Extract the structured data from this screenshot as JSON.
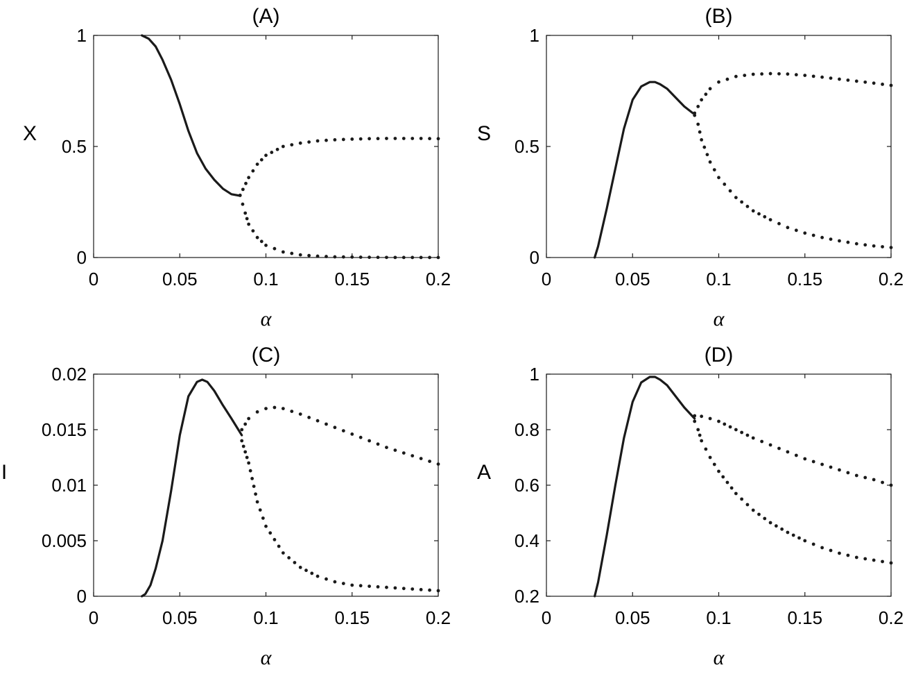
{
  "chart_data": [
    {
      "type": "line",
      "title": "(A)",
      "xlabel": "α",
      "ylabel": "X",
      "xlim": [
        0,
        0.2
      ],
      "ylim": [
        0,
        1
      ],
      "xticks": [
        "0",
        "0.05",
        "0.1",
        "0.15",
        "0.2"
      ],
      "yticks": [
        "0",
        "0.5",
        "1"
      ],
      "xtick_values": [
        0,
        0.05,
        0.1,
        0.15,
        0.2
      ],
      "ytick_values": [
        0,
        0.5,
        1
      ],
      "series": [
        {
          "style": "solid",
          "x": [
            0.028,
            0.032,
            0.036,
            0.04,
            0.045,
            0.05,
            0.055,
            0.06,
            0.065,
            0.07,
            0.075,
            0.08,
            0.085
          ],
          "y": [
            1.0,
            0.985,
            0.95,
            0.89,
            0.8,
            0.69,
            0.57,
            0.47,
            0.4,
            0.35,
            0.31,
            0.285,
            0.278
          ]
        },
        {
          "style": "dotted",
          "x": [
            0.085,
            0.09,
            0.095,
            0.1,
            0.11,
            0.12,
            0.13,
            0.14,
            0.15,
            0.16,
            0.17,
            0.18,
            0.19,
            0.2
          ],
          "y": [
            0.28,
            0.36,
            0.42,
            0.46,
            0.5,
            0.515,
            0.525,
            0.53,
            0.533,
            0.535,
            0.536,
            0.536,
            0.536,
            0.535
          ]
        },
        {
          "style": "dotted",
          "x": [
            0.085,
            0.088,
            0.09,
            0.095,
            0.1,
            0.11,
            0.12,
            0.13,
            0.14,
            0.15,
            0.16,
            0.17,
            0.18,
            0.19,
            0.2
          ],
          "y": [
            0.28,
            0.2,
            0.15,
            0.09,
            0.055,
            0.025,
            0.012,
            0.006,
            0.003,
            0.002,
            0.001,
            0.0005,
            0.0003,
            0.0002,
            0.0001
          ]
        }
      ]
    },
    {
      "type": "line",
      "title": "(B)",
      "xlabel": "α",
      "ylabel": "S",
      "xlim": [
        0,
        0.2
      ],
      "ylim": [
        0,
        1
      ],
      "xticks": [
        "0",
        "0.05",
        "0.1",
        "0.15",
        "0.2"
      ],
      "yticks": [
        "0",
        "0.5",
        "1"
      ],
      "xtick_values": [
        0,
        0.05,
        0.1,
        0.15,
        0.2
      ],
      "ytick_values": [
        0,
        0.5,
        1
      ],
      "series": [
        {
          "style": "solid",
          "x": [
            0.028,
            0.03,
            0.035,
            0.04,
            0.045,
            0.05,
            0.055,
            0.06,
            0.063,
            0.066,
            0.07,
            0.075,
            0.08,
            0.085
          ],
          "y": [
            0.0,
            0.05,
            0.22,
            0.4,
            0.58,
            0.71,
            0.77,
            0.79,
            0.79,
            0.78,
            0.76,
            0.72,
            0.68,
            0.65
          ]
        },
        {
          "style": "dotted",
          "x": [
            0.086,
            0.09,
            0.095,
            0.1,
            0.11,
            0.12,
            0.13,
            0.14,
            0.15,
            0.16,
            0.17,
            0.18,
            0.19,
            0.2
          ],
          "y": [
            0.65,
            0.71,
            0.76,
            0.79,
            0.815,
            0.825,
            0.828,
            0.826,
            0.82,
            0.812,
            0.803,
            0.794,
            0.785,
            0.775
          ]
        },
        {
          "style": "dotted",
          "x": [
            0.086,
            0.088,
            0.09,
            0.095,
            0.1,
            0.11,
            0.12,
            0.13,
            0.14,
            0.15,
            0.16,
            0.17,
            0.18,
            0.19,
            0.2
          ],
          "y": [
            0.64,
            0.6,
            0.53,
            0.43,
            0.36,
            0.27,
            0.21,
            0.17,
            0.135,
            0.11,
            0.09,
            0.075,
            0.062,
            0.052,
            0.045
          ]
        }
      ]
    },
    {
      "type": "line",
      "title": "(C)",
      "xlabel": "α",
      "ylabel": "I",
      "xlim": [
        0,
        0.2
      ],
      "ylim": [
        0,
        0.02
      ],
      "xticks": [
        "0",
        "0.05",
        "0.1",
        "0.15",
        "0.2"
      ],
      "yticks": [
        "0",
        "0.005",
        "0.01",
        "0.015",
        "0.02"
      ],
      "xtick_values": [
        0,
        0.05,
        0.1,
        0.15,
        0.2
      ],
      "ytick_values": [
        0,
        0.005,
        0.01,
        0.015,
        0.02
      ],
      "series": [
        {
          "style": "solid",
          "x": [
            0.028,
            0.03,
            0.033,
            0.036,
            0.04,
            0.045,
            0.05,
            0.055,
            0.06,
            0.063,
            0.066,
            0.07,
            0.075,
            0.08,
            0.086
          ],
          "y": [
            0.0,
            0.0002,
            0.001,
            0.0025,
            0.005,
            0.0095,
            0.0145,
            0.018,
            0.0193,
            0.0195,
            0.0193,
            0.0185,
            0.0172,
            0.016,
            0.0145
          ]
        },
        {
          "style": "dotted",
          "x": [
            0.086,
            0.09,
            0.095,
            0.1,
            0.105,
            0.11,
            0.12,
            0.13,
            0.14,
            0.15,
            0.16,
            0.17,
            0.18,
            0.19,
            0.2
          ],
          "y": [
            0.015,
            0.016,
            0.0166,
            0.0169,
            0.017,
            0.0169,
            0.0164,
            0.0158,
            0.0152,
            0.0146,
            0.014,
            0.0134,
            0.0129,
            0.0124,
            0.0119
          ]
        },
        {
          "style": "dotted",
          "x": [
            0.086,
            0.088,
            0.09,
            0.095,
            0.1,
            0.11,
            0.12,
            0.13,
            0.14,
            0.15,
            0.16,
            0.17,
            0.18,
            0.19,
            0.2
          ],
          "y": [
            0.014,
            0.013,
            0.012,
            0.0085,
            0.0063,
            0.0039,
            0.0026,
            0.0018,
            0.0013,
            0.001,
            0.0009,
            0.0008,
            0.0007,
            0.0006,
            0.0005
          ]
        }
      ]
    },
    {
      "type": "line",
      "title": "(D)",
      "xlabel": "α",
      "ylabel": "A",
      "xlim": [
        0,
        0.2
      ],
      "ylim": [
        0.2,
        1
      ],
      "xticks": [
        "0",
        "0.05",
        "0.1",
        "0.15",
        "0.2"
      ],
      "yticks": [
        "0.2",
        "0.4",
        "0.6",
        "0.8",
        "1"
      ],
      "xtick_values": [
        0,
        0.05,
        0.1,
        0.15,
        0.2
      ],
      "ytick_values": [
        0.2,
        0.4,
        0.6,
        0.8,
        1
      ],
      "series": [
        {
          "style": "solid",
          "x": [
            0.028,
            0.03,
            0.035,
            0.04,
            0.045,
            0.05,
            0.055,
            0.06,
            0.063,
            0.066,
            0.07,
            0.075,
            0.08,
            0.086
          ],
          "y": [
            0.2,
            0.25,
            0.42,
            0.6,
            0.77,
            0.9,
            0.97,
            0.99,
            0.99,
            0.98,
            0.96,
            0.92,
            0.88,
            0.84
          ]
        },
        {
          "style": "dotted",
          "x": [
            0.086,
            0.09,
            0.095,
            0.1,
            0.11,
            0.12,
            0.13,
            0.14,
            0.15,
            0.16,
            0.17,
            0.18,
            0.19,
            0.2
          ],
          "y": [
            0.85,
            0.848,
            0.84,
            0.83,
            0.8,
            0.77,
            0.745,
            0.72,
            0.695,
            0.675,
            0.655,
            0.635,
            0.62,
            0.6
          ]
        },
        {
          "style": "dotted",
          "x": [
            0.086,
            0.088,
            0.09,
            0.095,
            0.1,
            0.11,
            0.12,
            0.13,
            0.14,
            0.15,
            0.16,
            0.17,
            0.18,
            0.19,
            0.2
          ],
          "y": [
            0.83,
            0.8,
            0.76,
            0.7,
            0.65,
            0.57,
            0.51,
            0.465,
            0.43,
            0.4,
            0.375,
            0.355,
            0.34,
            0.33,
            0.32
          ]
        }
      ]
    }
  ]
}
